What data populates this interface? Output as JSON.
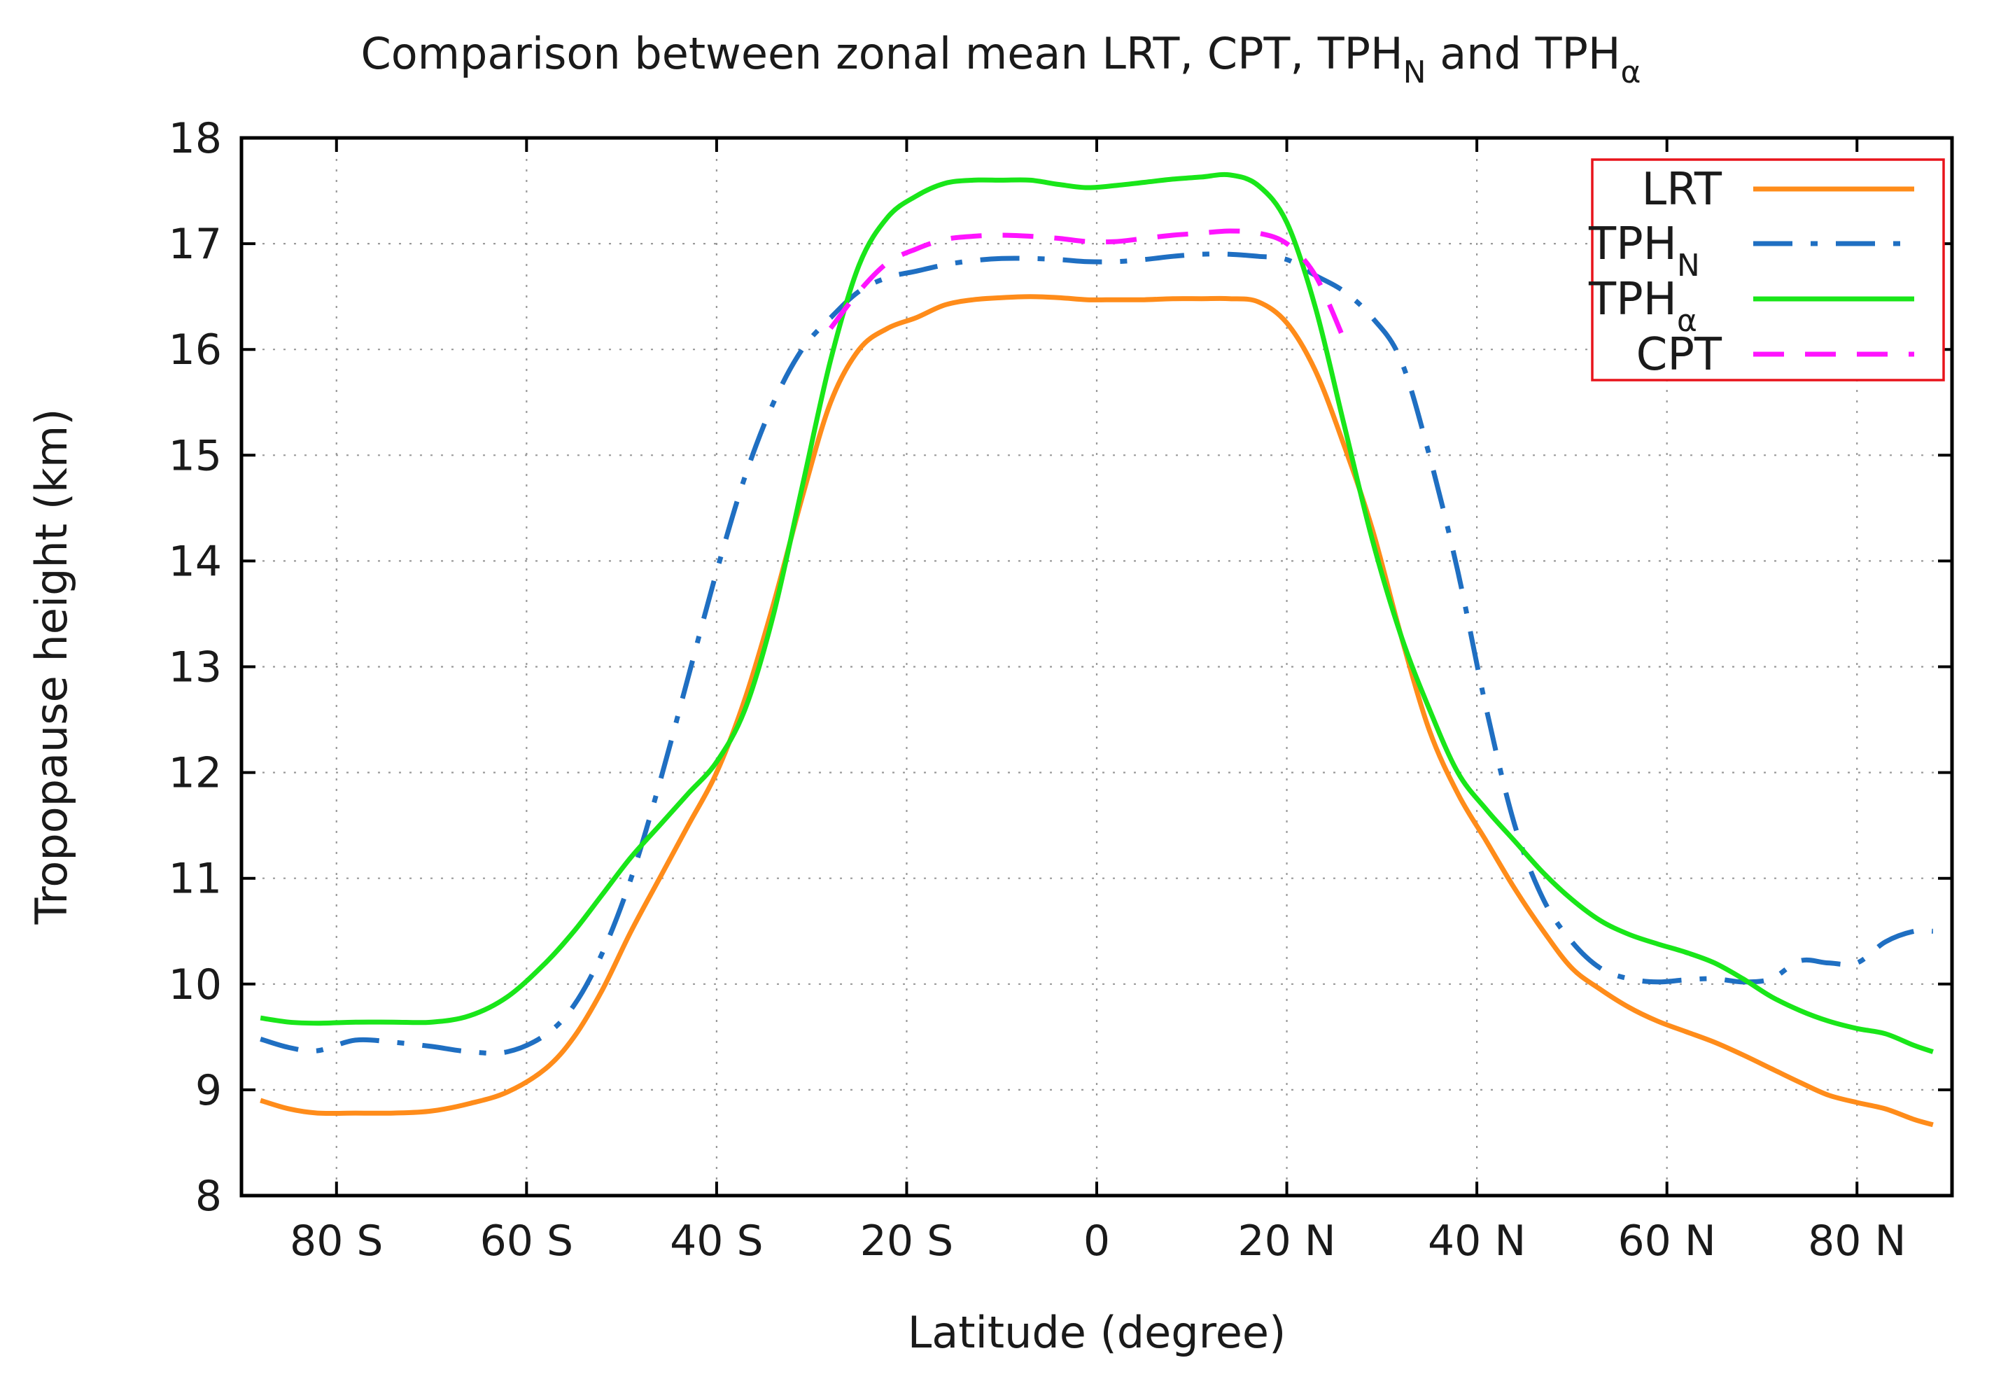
{
  "chart_data": {
    "type": "line",
    "title": {
      "prefix": "Comparison between zonal mean LRT, CPT, TPH",
      "sub_n": "N",
      "mid": " and TPH",
      "sub_alpha": "α"
    },
    "xlabel": "Latitude (degree)",
    "ylabel": "Tropopause height (km)",
    "xlim": [
      -90,
      90
    ],
    "ylim": [
      8,
      18
    ],
    "grid": true,
    "legend_position": "top-right",
    "x_ticks": [
      {
        "value": -80,
        "label": "80 S"
      },
      {
        "value": -60,
        "label": "60 S"
      },
      {
        "value": -40,
        "label": "40 S"
      },
      {
        "value": -20,
        "label": "20 S"
      },
      {
        "value": 0,
        "label": "0"
      },
      {
        "value": 20,
        "label": "20 N"
      },
      {
        "value": 40,
        "label": "40 N"
      },
      {
        "value": 60,
        "label": "60 N"
      },
      {
        "value": 80,
        "label": "80 N"
      }
    ],
    "y_ticks": [
      {
        "value": 8,
        "label": "8"
      },
      {
        "value": 9,
        "label": "9"
      },
      {
        "value": 10,
        "label": "10"
      },
      {
        "value": 11,
        "label": "11"
      },
      {
        "value": 12,
        "label": "12"
      },
      {
        "value": 13,
        "label": "13"
      },
      {
        "value": 14,
        "label": "14"
      },
      {
        "value": 15,
        "label": "15"
      },
      {
        "value": 16,
        "label": "16"
      },
      {
        "value": 17,
        "label": "17"
      },
      {
        "value": 18,
        "label": "18"
      }
    ],
    "series": [
      {
        "name": "LRT",
        "label": "LRT",
        "subscript": "",
        "color": "#ff8c1a",
        "dash": "solid",
        "x": [
          -88,
          -85,
          -82,
          -78,
          -74,
          -70,
          -66,
          -62,
          -58,
          -55,
          -52,
          -49,
          -46,
          -43,
          -40,
          -37,
          -34,
          -31,
          -28,
          -25,
          -22,
          -19,
          -16,
          -13,
          -10,
          -7,
          -4,
          -1,
          2,
          5,
          8,
          11,
          14,
          17,
          20,
          23,
          26,
          29,
          32,
          35,
          38,
          41,
          44,
          47,
          50,
          53,
          56,
          59,
          62,
          65,
          68,
          71,
          74,
          77,
          80,
          83,
          86,
          88
        ],
        "y": [
          8.9,
          8.82,
          8.78,
          8.78,
          8.78,
          8.8,
          8.87,
          8.98,
          9.2,
          9.5,
          9.95,
          10.5,
          11.0,
          11.5,
          12.0,
          12.7,
          13.6,
          14.6,
          15.5,
          16.0,
          16.2,
          16.3,
          16.42,
          16.47,
          16.49,
          16.5,
          16.49,
          16.47,
          16.47,
          16.47,
          16.48,
          16.48,
          16.48,
          16.45,
          16.25,
          15.8,
          15.1,
          14.3,
          13.3,
          12.4,
          11.8,
          11.35,
          10.9,
          10.5,
          10.15,
          9.95,
          9.78,
          9.65,
          9.55,
          9.45,
          9.33,
          9.2,
          9.07,
          8.95,
          8.88,
          8.82,
          8.72,
          8.67
        ]
      },
      {
        "name": "TPH_N",
        "label": "TPH",
        "subscript": "N",
        "color": "#1f6fc2",
        "dash": "dashdot",
        "x": [
          -88,
          -85,
          -82,
          -78,
          -74,
          -70,
          -66,
          -62,
          -58,
          -55,
          -52,
          -49,
          -46,
          -43,
          -40,
          -37,
          -34,
          -31,
          -28,
          -25,
          -22,
          -19,
          -16,
          -13,
          -10,
          -7,
          -4,
          -1,
          2,
          5,
          8,
          11,
          14,
          17,
          20,
          23,
          26,
          29,
          32,
          35,
          38,
          41,
          44,
          47,
          50,
          53,
          56,
          59,
          62,
          65,
          68,
          71,
          74,
          77,
          80,
          83,
          86,
          88
        ],
        "y": [
          9.48,
          9.4,
          9.37,
          9.47,
          9.45,
          9.41,
          9.36,
          9.36,
          9.52,
          9.8,
          10.3,
          11.0,
          11.9,
          12.9,
          13.9,
          14.8,
          15.5,
          16.0,
          16.3,
          16.55,
          16.68,
          16.74,
          16.8,
          16.84,
          16.86,
          16.86,
          16.85,
          16.83,
          16.83,
          16.85,
          16.88,
          16.9,
          16.9,
          16.88,
          16.85,
          16.7,
          16.55,
          16.3,
          15.9,
          15.0,
          13.9,
          12.6,
          11.5,
          10.8,
          10.4,
          10.15,
          10.05,
          10.02,
          10.04,
          10.05,
          10.02,
          10.05,
          10.22,
          10.2,
          10.2,
          10.4,
          10.5,
          10.5
        ]
      },
      {
        "name": "TPH_alpha",
        "label": "TPH",
        "subscript": "α",
        "color": "#19e619",
        "dash": "solid",
        "x": [
          -88,
          -85,
          -82,
          -78,
          -74,
          -70,
          -66,
          -62,
          -58,
          -55,
          -52,
          -49,
          -46,
          -43,
          -40,
          -37,
          -34,
          -31,
          -28,
          -25,
          -22,
          -19,
          -16,
          -13,
          -10,
          -7,
          -4,
          -1,
          2,
          5,
          8,
          11,
          14,
          17,
          20,
          23,
          26,
          29,
          32,
          35,
          38,
          41,
          44,
          47,
          50,
          53,
          56,
          59,
          62,
          65,
          68,
          71,
          74,
          77,
          80,
          83,
          86,
          88
        ],
        "y": [
          9.68,
          9.64,
          9.63,
          9.64,
          9.64,
          9.64,
          9.7,
          9.88,
          10.2,
          10.5,
          10.85,
          11.2,
          11.5,
          11.8,
          12.1,
          12.6,
          13.5,
          14.7,
          15.9,
          16.8,
          17.25,
          17.45,
          17.57,
          17.6,
          17.6,
          17.6,
          17.56,
          17.53,
          17.55,
          17.58,
          17.61,
          17.63,
          17.65,
          17.55,
          17.2,
          16.4,
          15.3,
          14.2,
          13.3,
          12.6,
          12.0,
          11.65,
          11.35,
          11.05,
          10.8,
          10.6,
          10.47,
          10.38,
          10.3,
          10.2,
          10.05,
          9.88,
          9.75,
          9.65,
          9.58,
          9.53,
          9.42,
          9.36
        ]
      },
      {
        "name": "CPT",
        "label": "CPT",
        "subscript": "",
        "color": "#ff14ff",
        "dash": "dashed",
        "x": [
          -28,
          -25,
          -22,
          -19,
          -16,
          -13,
          -10,
          -7,
          -4,
          -1,
          2,
          5,
          8,
          11,
          14,
          17,
          20,
          23,
          26
        ],
        "y": [
          16.2,
          16.55,
          16.82,
          16.95,
          17.04,
          17.07,
          17.08,
          17.07,
          17.05,
          17.02,
          17.02,
          17.05,
          17.08,
          17.1,
          17.12,
          17.1,
          17.0,
          16.7,
          16.1
        ]
      }
    ]
  }
}
